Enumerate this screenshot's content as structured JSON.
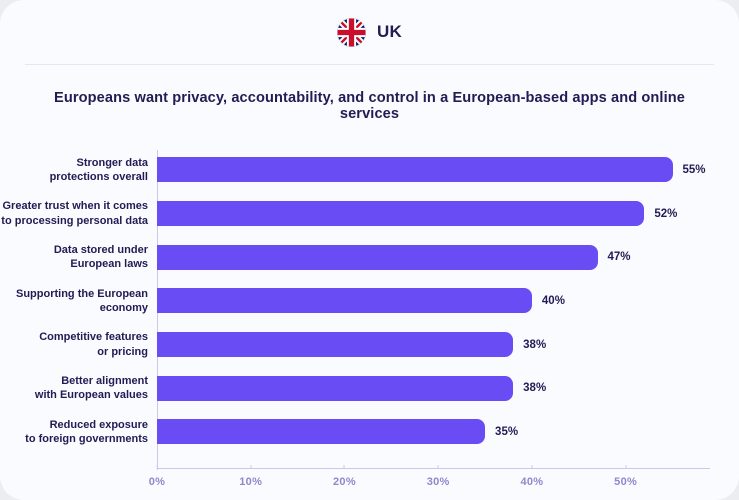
{
  "header": {
    "country_label": "UK",
    "flag_icon": "uk-flag-icon"
  },
  "title": "Europeans want privacy, accountability, and control in a European-based apps and online services",
  "chart_data": {
    "type": "bar",
    "orientation": "horizontal",
    "title": "Europeans want privacy, accountability, and control in a European-based apps and online services",
    "categories": [
      "Stronger data\nprotections overall",
      "Greater trust when it comes\nto processing personal data",
      "Data stored under\nEuropean laws",
      "Supporting the European\neconomy",
      "Competitive features\nor pricing",
      "Better alignment\nwith European values",
      "Reduced exposure\nto foreign governments"
    ],
    "values": [
      55,
      52,
      47,
      40,
      38,
      38,
      35
    ],
    "value_labels": [
      "55%",
      "52%",
      "47%",
      "40%",
      "38%",
      "38%",
      "35%"
    ],
    "x_tick_values": [
      0,
      10,
      20,
      30,
      40,
      50
    ],
    "x_ticks": [
      "0%",
      "10%",
      "20%",
      "30%",
      "40%",
      "50%"
    ],
    "xlim": [
      0,
      59
    ],
    "xlabel": "",
    "ylabel": "",
    "grid": false,
    "legend": "none",
    "bar_color": "#6a4cf5",
    "label_color": "#221b54",
    "axis_color": "#cdc7ee",
    "tick_label_color": "#8f87cc"
  }
}
